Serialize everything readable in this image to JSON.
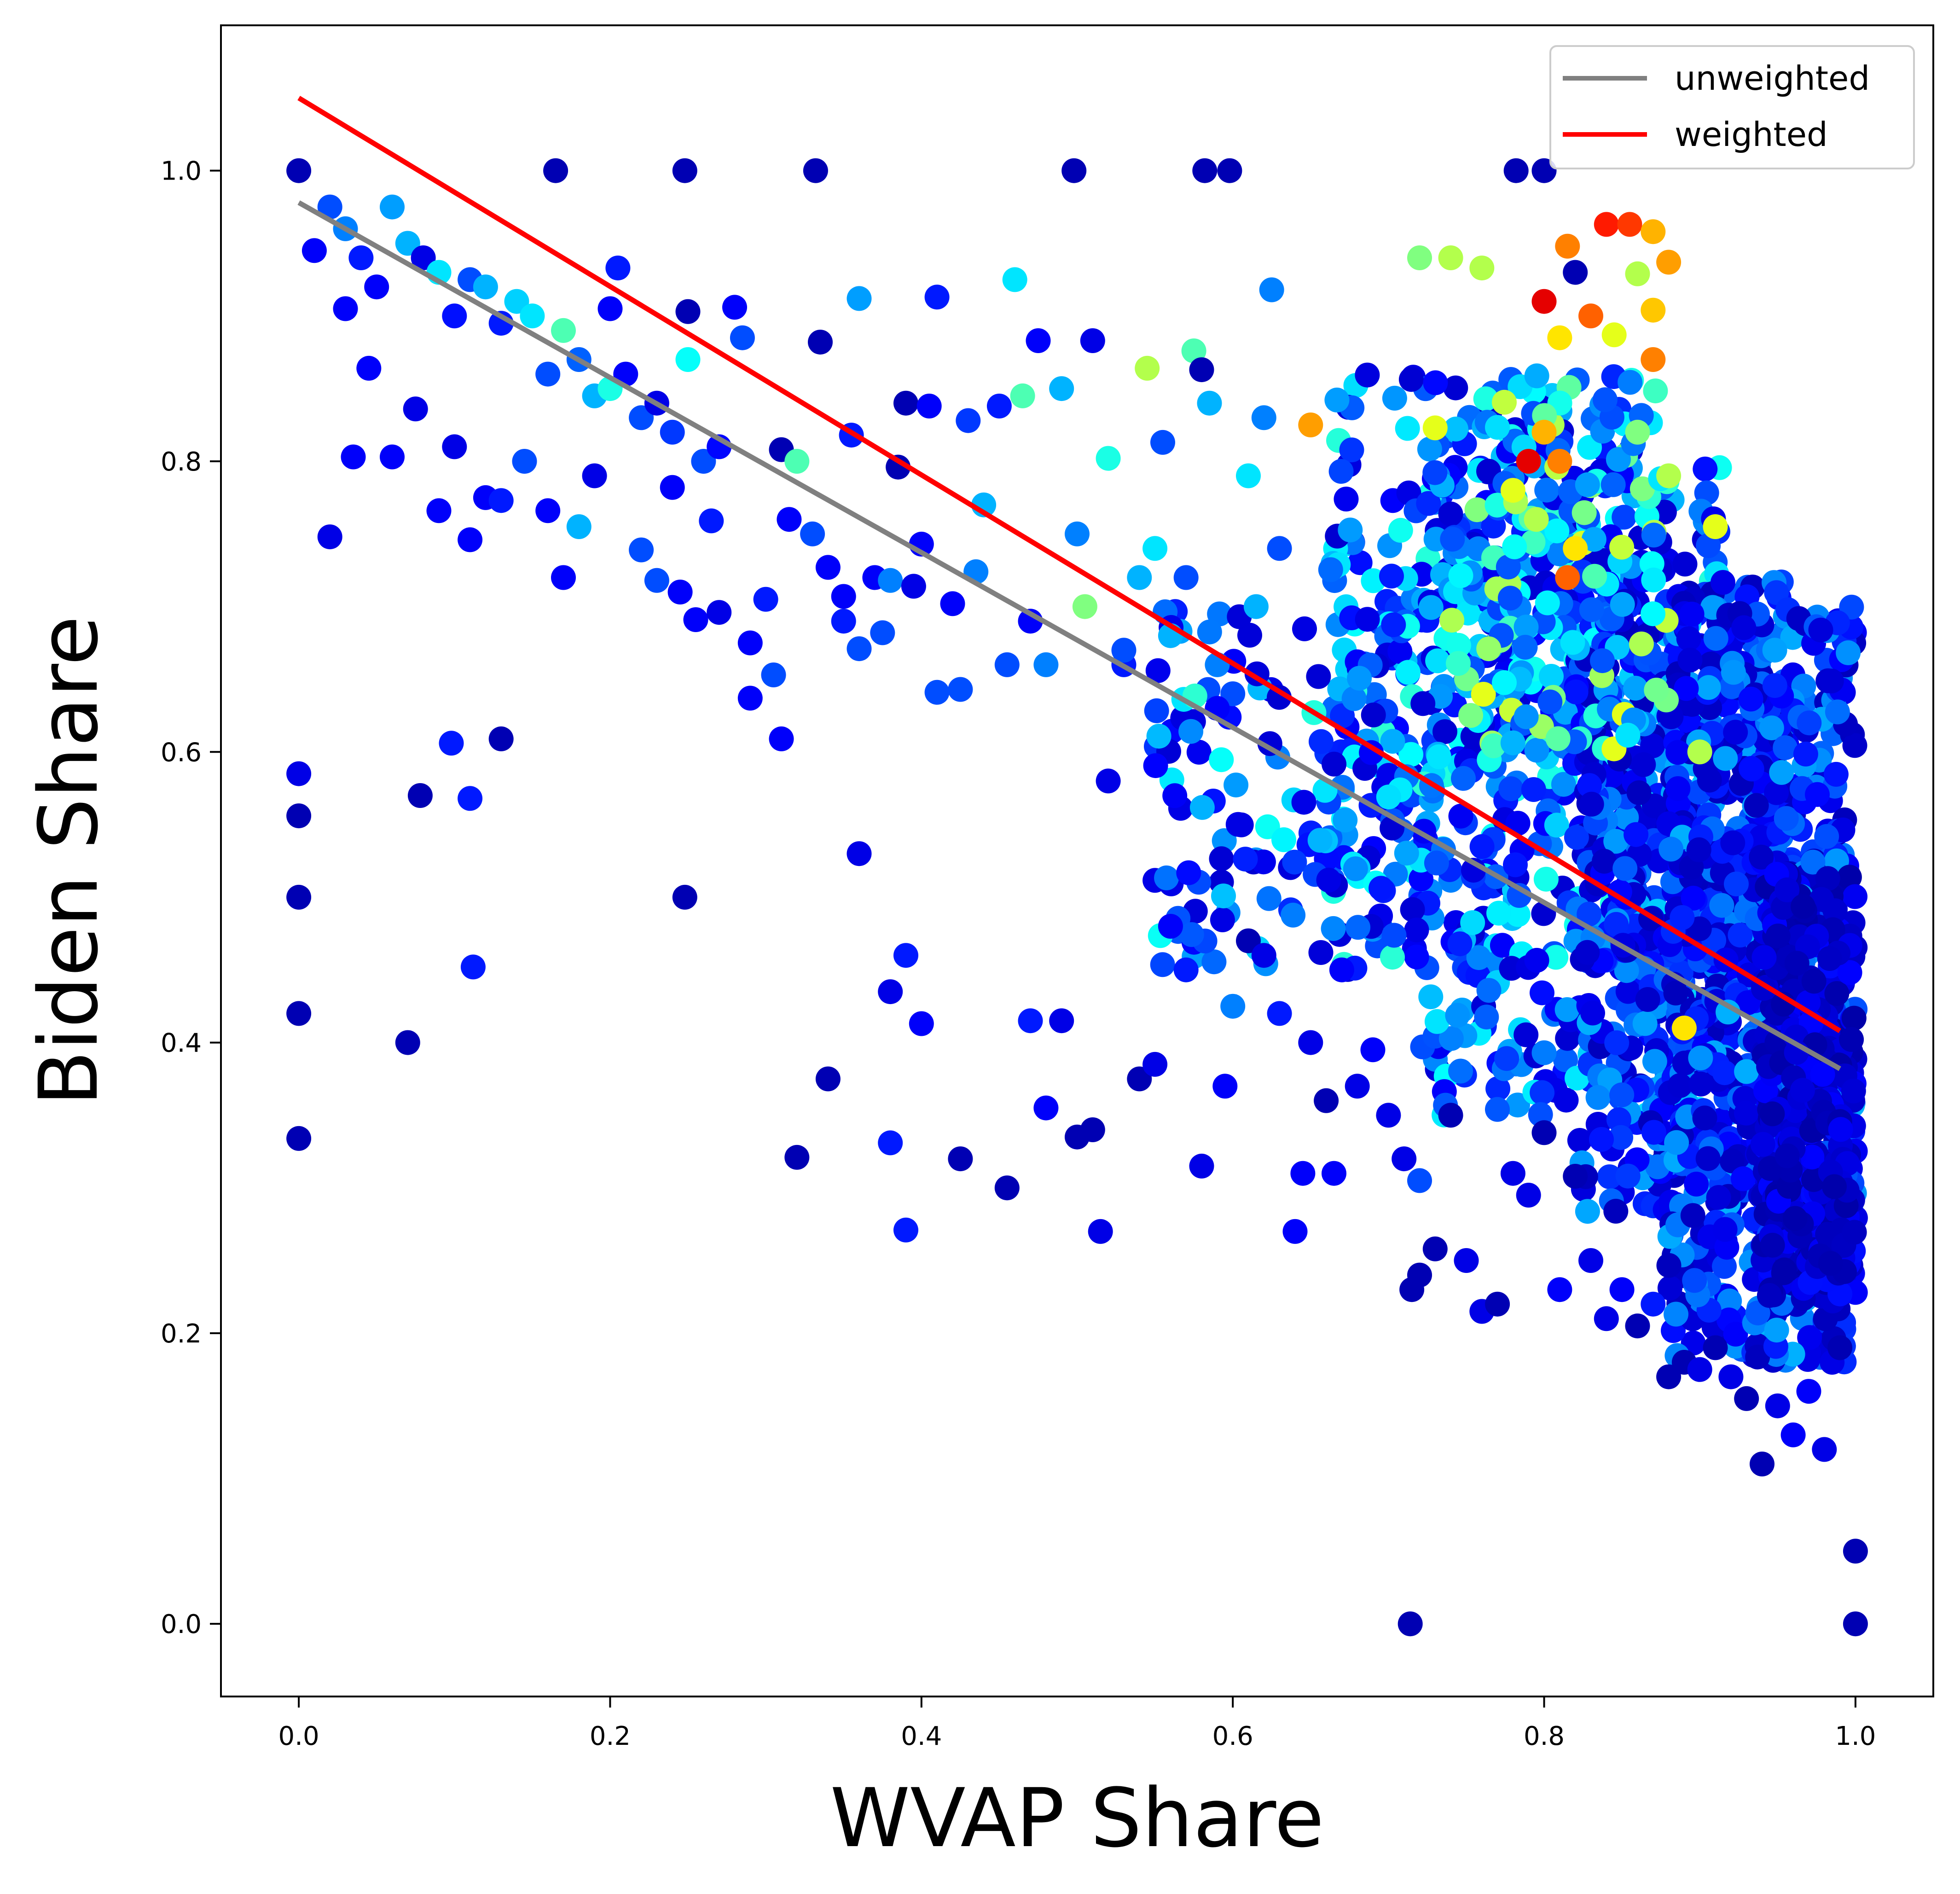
{
  "chart_data": {
    "type": "scatter",
    "xlabel": "WVAP Share",
    "ylabel": "Biden Share",
    "xlim": [
      -0.05,
      1.05
    ],
    "ylim": [
      -0.05,
      1.1
    ],
    "xticks": [
      "0.0",
      "0.2",
      "0.4",
      "0.6",
      "0.8",
      "1.0"
    ],
    "xtick_values": [
      0.0,
      0.2,
      0.4,
      0.6,
      0.8,
      1.0
    ],
    "yticks": [
      "0.0",
      "0.2",
      "0.4",
      "0.6",
      "0.8",
      "1.0"
    ],
    "ytick_values": [
      0.0,
      0.2,
      0.4,
      0.6,
      0.8,
      1.0
    ],
    "grid": false,
    "legend_position": "top-right",
    "colormap": "jet",
    "lines": [
      {
        "name": "unweighted",
        "color": "#808080",
        "x": [
          0.0,
          0.99
        ],
        "y": [
          0.978,
          0.382
        ]
      },
      {
        "name": "weighted",
        "color": "#ff0000",
        "x": [
          0.0,
          0.99
        ],
        "y": [
          1.05,
          0.408
        ]
      }
    ],
    "scatter_points": [
      [
        0.0,
        1.0,
        0.05
      ],
      [
        0.165,
        1.0,
        0.05
      ],
      [
        0.248,
        1.0,
        0.05
      ],
      [
        0.332,
        1.0,
        0.05
      ],
      [
        0.498,
        1.0,
        0.05
      ],
      [
        0.582,
        1.0,
        0.05
      ],
      [
        0.598,
        1.0,
        0.05
      ],
      [
        0.782,
        1.0,
        0.05
      ],
      [
        0.8,
        1.0,
        0.05
      ],
      [
        0.0,
        0.585,
        0.1
      ],
      [
        0.0,
        0.556,
        0.05
      ],
      [
        0.0,
        0.5,
        0.05
      ],
      [
        0.0,
        0.42,
        0.05
      ],
      [
        0.0,
        0.334,
        0.05
      ],
      [
        0.07,
        0.4,
        0.05
      ],
      [
        0.078,
        0.57,
        0.05
      ],
      [
        0.098,
        0.606,
        0.15
      ],
      [
        0.11,
        0.568,
        0.15
      ],
      [
        0.112,
        0.452,
        0.15
      ],
      [
        0.13,
        0.609,
        0.05
      ],
      [
        0.248,
        0.5,
        0.05
      ],
      [
        0.714,
        0.0,
        0.05
      ],
      [
        1.0,
        0.0,
        0.05
      ],
      [
        1.0,
        0.05,
        0.05
      ],
      [
        0.02,
        0.975,
        0.2
      ],
      [
        0.03,
        0.96,
        0.25
      ],
      [
        0.04,
        0.94,
        0.15
      ],
      [
        0.05,
        0.92,
        0.12
      ],
      [
        0.06,
        0.975,
        0.28
      ],
      [
        0.07,
        0.95,
        0.3
      ],
      [
        0.08,
        0.94,
        0.1
      ],
      [
        0.09,
        0.93,
        0.35
      ],
      [
        0.1,
        0.9,
        0.14
      ],
      [
        0.11,
        0.925,
        0.2
      ],
      [
        0.12,
        0.92,
        0.3
      ],
      [
        0.13,
        0.895,
        0.15
      ],
      [
        0.14,
        0.91,
        0.33
      ],
      [
        0.15,
        0.9,
        0.35
      ],
      [
        0.16,
        0.86,
        0.2
      ],
      [
        0.17,
        0.89,
        0.45
      ],
      [
        0.18,
        0.87,
        0.22
      ],
      [
        0.19,
        0.845,
        0.3
      ],
      [
        0.2,
        0.85,
        0.4
      ],
      [
        0.21,
        0.86,
        0.12
      ],
      [
        0.22,
        0.83,
        0.2
      ],
      [
        0.23,
        0.84,
        0.1
      ],
      [
        0.24,
        0.82,
        0.18
      ],
      [
        0.25,
        0.87,
        0.38
      ],
      [
        0.26,
        0.8,
        0.2
      ],
      [
        0.27,
        0.81,
        0.13
      ],
      [
        0.01,
        0.945,
        0.12
      ],
      [
        0.02,
        0.748,
        0.1
      ],
      [
        0.03,
        0.905,
        0.12
      ],
      [
        0.035,
        0.803,
        0.12
      ],
      [
        0.045,
        0.864,
        0.12
      ],
      [
        0.06,
        0.803,
        0.12
      ],
      [
        0.075,
        0.836,
        0.1
      ],
      [
        0.09,
        0.766,
        0.12
      ],
      [
        0.1,
        0.81,
        0.1
      ],
      [
        0.11,
        0.746,
        0.12
      ],
      [
        0.12,
        0.775,
        0.12
      ],
      [
        0.13,
        0.773,
        0.15
      ],
      [
        0.145,
        0.8,
        0.2
      ],
      [
        0.16,
        0.766,
        0.12
      ],
      [
        0.17,
        0.72,
        0.12
      ],
      [
        0.18,
        0.755,
        0.3
      ],
      [
        0.19,
        0.79,
        0.1
      ],
      [
        0.2,
        0.905,
        0.12
      ],
      [
        0.205,
        0.933,
        0.15
      ],
      [
        0.22,
        0.739,
        0.2
      ],
      [
        0.23,
        0.718,
        0.2
      ],
      [
        0.24,
        0.782,
        0.12
      ],
      [
        0.245,
        0.71,
        0.12
      ],
      [
        0.25,
        0.903,
        0.05
      ],
      [
        0.255,
        0.691,
        0.12
      ],
      [
        0.265,
        0.759,
        0.15
      ],
      [
        0.27,
        0.696,
        0.1
      ],
      [
        0.28,
        0.906,
        0.12
      ],
      [
        0.285,
        0.885,
        0.2
      ],
      [
        0.29,
        0.637,
        0.12
      ],
      [
        0.29,
        0.675,
        0.12
      ],
      [
        0.3,
        0.705,
        0.15
      ],
      [
        0.305,
        0.653,
        0.2
      ],
      [
        0.31,
        0.609,
        0.12
      ],
      [
        0.31,
        0.808,
        0.05
      ],
      [
        0.315,
        0.76,
        0.12
      ],
      [
        0.32,
        0.8,
        0.45
      ],
      [
        0.33,
        0.75,
        0.2
      ],
      [
        0.335,
        0.882,
        0.05
      ],
      [
        0.34,
        0.727,
        0.12
      ],
      [
        0.35,
        0.707,
        0.12
      ],
      [
        0.355,
        0.818,
        0.15
      ],
      [
        0.36,
        0.912,
        0.28
      ],
      [
        0.37,
        0.72,
        0.12
      ],
      [
        0.375,
        0.682,
        0.2
      ],
      [
        0.38,
        0.718,
        0.25
      ],
      [
        0.385,
        0.796,
        0.05
      ],
      [
        0.39,
        0.84,
        0.05
      ],
      [
        0.395,
        0.714,
        0.1
      ],
      [
        0.4,
        0.743,
        0.12
      ],
      [
        0.405,
        0.838,
        0.12
      ],
      [
        0.41,
        0.913,
        0.15
      ],
      [
        0.41,
        0.641,
        0.2
      ],
      [
        0.42,
        0.702,
        0.12
      ],
      [
        0.425,
        0.643,
        0.2
      ],
      [
        0.43,
        0.828,
        0.18
      ],
      [
        0.435,
        0.724,
        0.25
      ],
      [
        0.44,
        0.77,
        0.3
      ],
      [
        0.45,
        0.838,
        0.15
      ],
      [
        0.455,
        0.66,
        0.2
      ],
      [
        0.46,
        0.925,
        0.35
      ],
      [
        0.465,
        0.845,
        0.45
      ],
      [
        0.47,
        0.69,
        0.12
      ],
      [
        0.475,
        0.883,
        0.12
      ],
      [
        0.48,
        0.66,
        0.25
      ],
      [
        0.49,
        0.85,
        0.3
      ],
      [
        0.5,
        0.75,
        0.25
      ],
      [
        0.505,
        0.7,
        0.5
      ],
      [
        0.51,
        0.883,
        0.1
      ],
      [
        0.52,
        0.802,
        0.4
      ],
      [
        0.53,
        0.66,
        0.15
      ],
      [
        0.54,
        0.72,
        0.3
      ],
      [
        0.545,
        0.864,
        0.55
      ],
      [
        0.55,
        0.74,
        0.35
      ],
      [
        0.555,
        0.813,
        0.2
      ],
      [
        0.56,
        0.68,
        0.3
      ],
      [
        0.57,
        0.72,
        0.2
      ],
      [
        0.575,
        0.876,
        0.45
      ],
      [
        0.58,
        0.863,
        0.05
      ],
      [
        0.585,
        0.84,
        0.3
      ],
      [
        0.59,
        0.66,
        0.25
      ],
      [
        0.6,
        0.64,
        0.2
      ],
      [
        0.61,
        0.79,
        0.35
      ],
      [
        0.615,
        0.7,
        0.3
      ],
      [
        0.62,
        0.83,
        0.25
      ],
      [
        0.625,
        0.918,
        0.25
      ],
      [
        0.63,
        0.74,
        0.2
      ],
      [
        0.34,
        0.375,
        0.05
      ],
      [
        0.38,
        0.331,
        0.15
      ],
      [
        0.32,
        0.321,
        0.05
      ],
      [
        0.36,
        0.53,
        0.1
      ],
      [
        0.35,
        0.69,
        0.15
      ],
      [
        0.36,
        0.671,
        0.2
      ],
      [
        0.38,
        0.435,
        0.1
      ],
      [
        0.39,
        0.46,
        0.15
      ],
      [
        0.39,
        0.271,
        0.15
      ],
      [
        0.4,
        0.413,
        0.12
      ],
      [
        0.425,
        0.32,
        0.05
      ],
      [
        0.455,
        0.3,
        0.05
      ],
      [
        0.47,
        0.415,
        0.15
      ],
      [
        0.48,
        0.355,
        0.12
      ],
      [
        0.49,
        0.415,
        0.1
      ],
      [
        0.5,
        0.335,
        0.05
      ],
      [
        0.51,
        0.34,
        0.05
      ],
      [
        0.515,
        0.27,
        0.1
      ],
      [
        0.52,
        0.58,
        0.1
      ],
      [
        0.53,
        0.67,
        0.2
      ],
      [
        0.54,
        0.375,
        0.05
      ],
      [
        0.55,
        0.385,
        0.1
      ],
      [
        0.56,
        0.48,
        0.12
      ],
      [
        0.57,
        0.45,
        0.15
      ],
      [
        0.58,
        0.315,
        0.1
      ],
      [
        0.59,
        0.63,
        0.12
      ],
      [
        0.595,
        0.37,
        0.12
      ],
      [
        0.6,
        0.425,
        0.25
      ],
      [
        0.61,
        0.47,
        0.05
      ],
      [
        0.62,
        0.46,
        0.1
      ],
      [
        0.63,
        0.42,
        0.15
      ],
      [
        0.64,
        0.27,
        0.12
      ],
      [
        0.645,
        0.31,
        0.12
      ],
      [
        0.65,
        0.4,
        0.1
      ],
      [
        0.66,
        0.36,
        0.05
      ],
      [
        0.665,
        0.31,
        0.12
      ],
      [
        0.67,
        0.45,
        0.12
      ],
      [
        0.68,
        0.37,
        0.1
      ],
      [
        0.69,
        0.395,
        0.12
      ],
      [
        0.7,
        0.35,
        0.1
      ],
      [
        0.71,
        0.32,
        0.1
      ],
      [
        0.72,
        0.305,
        0.2
      ],
      [
        0.715,
        0.23,
        0.05
      ],
      [
        0.72,
        0.24,
        0.05
      ],
      [
        0.73,
        0.258,
        0.05
      ],
      [
        0.74,
        0.35,
        0.05
      ],
      [
        0.75,
        0.25,
        0.1
      ],
      [
        0.76,
        0.215,
        0.1
      ],
      [
        0.77,
        0.22,
        0.05
      ],
      [
        0.78,
        0.31,
        0.1
      ],
      [
        0.79,
        0.295,
        0.1
      ],
      [
        0.8,
        0.338,
        0.05
      ],
      [
        0.81,
        0.23,
        0.12
      ],
      [
        0.82,
        0.308,
        0.05
      ],
      [
        0.83,
        0.25,
        0.1
      ],
      [
        0.84,
        0.21,
        0.1
      ],
      [
        0.85,
        0.23,
        0.12
      ],
      [
        0.86,
        0.205,
        0.05
      ],
      [
        0.87,
        0.22,
        0.15
      ],
      [
        0.88,
        0.17,
        0.05
      ],
      [
        0.89,
        0.18,
        0.05
      ],
      [
        0.9,
        0.175,
        0.1
      ],
      [
        0.91,
        0.19,
        0.05
      ],
      [
        0.92,
        0.17,
        0.1
      ],
      [
        0.93,
        0.155,
        0.05
      ],
      [
        0.94,
        0.11,
        0.05
      ],
      [
        0.95,
        0.15,
        0.1
      ],
      [
        0.96,
        0.13,
        0.12
      ],
      [
        0.97,
        0.16,
        0.12
      ],
      [
        0.98,
        0.12,
        0.1
      ],
      [
        0.985,
        0.18,
        0.1
      ],
      [
        0.99,
        0.19,
        0.05
      ],
      [
        0.8,
        0.91,
        0.9
      ],
      [
        0.815,
        0.948,
        0.75
      ],
      [
        0.84,
        0.963,
        0.85
      ],
      [
        0.855,
        0.963,
        0.82
      ],
      [
        0.87,
        0.958,
        0.7
      ],
      [
        0.88,
        0.937,
        0.72
      ],
      [
        0.83,
        0.9,
        0.78
      ],
      [
        0.87,
        0.904,
        0.68
      ],
      [
        0.86,
        0.929,
        0.55
      ],
      [
        0.845,
        0.887,
        0.6
      ],
      [
        0.82,
        0.93,
        0.05
      ],
      [
        0.81,
        0.885,
        0.65
      ],
      [
        0.79,
        0.8,
        0.9
      ],
      [
        0.8,
        0.82,
        0.7
      ],
      [
        0.81,
        0.8,
        0.75
      ],
      [
        0.78,
        0.78,
        0.6
      ],
      [
        0.795,
        0.76,
        0.55
      ],
      [
        0.815,
        0.72,
        0.78
      ],
      [
        0.82,
        0.74,
        0.65
      ],
      [
        0.65,
        0.825,
        0.72
      ],
      [
        0.73,
        0.823,
        0.6
      ],
      [
        0.74,
        0.94,
        0.55
      ],
      [
        0.76,
        0.933,
        0.55
      ],
      [
        0.72,
        0.94,
        0.5
      ],
      [
        0.89,
        0.41,
        0.65
      ],
      [
        0.9,
        0.6,
        0.55
      ],
      [
        0.91,
        0.755,
        0.6
      ],
      [
        0.88,
        0.79,
        0.55
      ],
      [
        0.87,
        0.87,
        0.75
      ],
      [
        0.86,
        0.82,
        0.5
      ]
    ],
    "dense_clusters": [
      {
        "x": [
          0.66,
          0.86
        ],
        "y": [
          0.45,
          0.86
        ],
        "count": 320,
        "palette": "mixed",
        "seed": 11
      },
      {
        "x": [
          0.72,
          0.92
        ],
        "y": [
          0.35,
          0.8
        ],
        "count": 420,
        "palette": "mixed",
        "seed": 23
      },
      {
        "x": [
          0.82,
          0.96
        ],
        "y": [
          0.28,
          0.72
        ],
        "count": 520,
        "palette": "blue",
        "seed": 37
      },
      {
        "x": [
          0.88,
          1.0
        ],
        "y": [
          0.18,
          0.7
        ],
        "count": 620,
        "palette": "blue",
        "seed": 41
      },
      {
        "x": [
          0.94,
          1.0
        ],
        "y": [
          0.22,
          0.52
        ],
        "count": 360,
        "palette": "dark",
        "seed": 53
      },
      {
        "x": [
          0.55,
          0.72
        ],
        "y": [
          0.45,
          0.7
        ],
        "count": 140,
        "palette": "mixed",
        "seed": 67
      },
      {
        "x": [
          0.74,
          0.88
        ],
        "y": [
          0.6,
          0.86
        ],
        "count": 150,
        "palette": "bright",
        "seed": 79
      }
    ]
  }
}
